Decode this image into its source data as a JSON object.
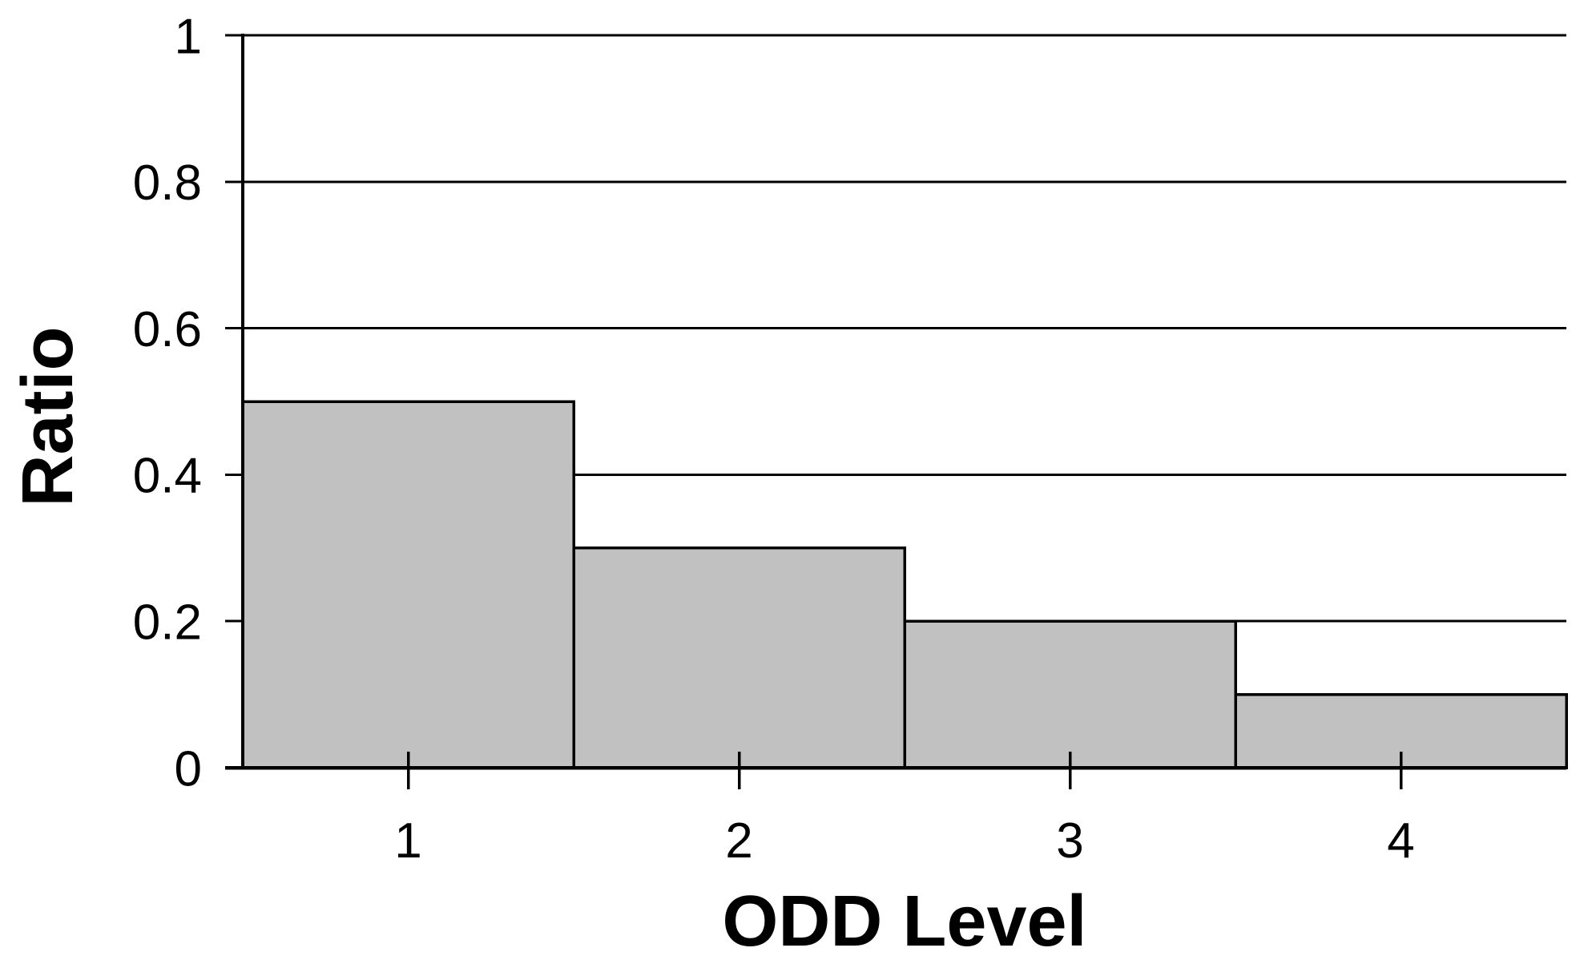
{
  "figure": {
    "background": "#ffffff"
  },
  "chart_data": {
    "type": "bar",
    "style": "adjacent-bars-histogram",
    "title": "",
    "xlabel": "ODD Level",
    "ylabel": "Ratio",
    "categories": [
      "1",
      "2",
      "3",
      "4"
    ],
    "values": [
      0.5,
      0.3,
      0.2,
      0.1
    ],
    "series": [
      {
        "name": "Ratio",
        "values": [
          0.5,
          0.3,
          0.2,
          0.1
        ]
      }
    ],
    "bar_width": 1,
    "xlim": [
      0.5,
      4.5
    ],
    "ylim": [
      0,
      1
    ],
    "xticks": {
      "values": [
        1,
        2,
        3,
        4
      ],
      "labels": [
        "1",
        "2",
        "3",
        "4"
      ]
    },
    "yticks": {
      "values": [
        0,
        0.2,
        0.4,
        0.6,
        0.8,
        1
      ],
      "labels": [
        "0",
        "0.2",
        "0.4",
        "0.6",
        "0.8",
        "1"
      ]
    },
    "grid": {
      "horizontal": true,
      "vertical": false
    },
    "legend": "none",
    "colors": {
      "bar_fill": "#c1c1c1",
      "bar_stroke": "#000000",
      "axis": "#000000",
      "gridline": "#000000",
      "text": "#000000",
      "background": "#ffffff"
    }
  }
}
